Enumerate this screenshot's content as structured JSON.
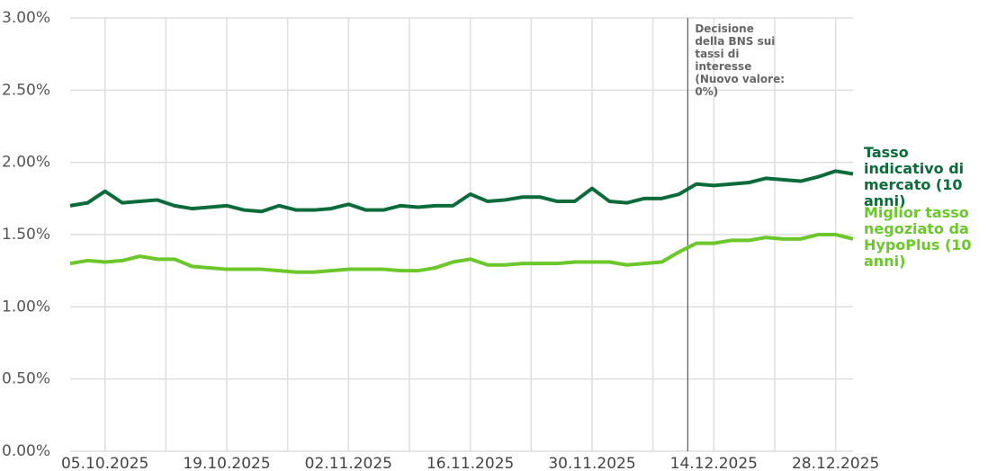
{
  "chart_data": {
    "type": "line",
    "x": [
      "01.10.2025",
      "03.10.2025",
      "05.10.2025",
      "07.10.2025",
      "09.10.2025",
      "11.10.2025",
      "13.10.2025",
      "15.10.2025",
      "17.10.2025",
      "19.10.2025",
      "21.10.2025",
      "23.10.2025",
      "25.10.2025",
      "27.10.2025",
      "29.10.2025",
      "31.10.2025",
      "02.11.2025",
      "04.11.2025",
      "06.11.2025",
      "08.11.2025",
      "10.11.2025",
      "12.11.2025",
      "14.11.2025",
      "16.11.2025",
      "18.11.2025",
      "20.11.2025",
      "22.11.2025",
      "24.11.2025",
      "26.11.2025",
      "28.11.2025",
      "30.11.2025",
      "02.12.2025",
      "04.12.2025",
      "06.12.2025",
      "08.12.2025",
      "10.12.2025",
      "12.12.2025",
      "14.12.2025",
      "16.12.2025",
      "18.12.2025",
      "20.12.2025",
      "22.12.2025",
      "24.12.2025",
      "26.12.2025",
      "28.12.2025",
      "30.12.2025"
    ],
    "series": [
      {
        "name": "Tasso indicativo di mercato (10 anni)",
        "color": "#0b6b3a",
        "values": [
          1.7,
          1.72,
          1.8,
          1.72,
          1.73,
          1.74,
          1.7,
          1.68,
          1.69,
          1.7,
          1.67,
          1.66,
          1.7,
          1.67,
          1.67,
          1.68,
          1.71,
          1.67,
          1.67,
          1.7,
          1.69,
          1.7,
          1.7,
          1.78,
          1.73,
          1.74,
          1.76,
          1.76,
          1.73,
          1.73,
          1.82,
          1.73,
          1.72,
          1.75,
          1.75,
          1.78,
          1.85,
          1.84,
          1.85,
          1.86,
          1.89,
          1.88,
          1.87,
          1.9,
          1.94,
          1.92
        ]
      },
      {
        "name": "Miglior tasso negoziato da HypoPlus (10 anni)",
        "color": "#6cc72b",
        "values": [
          1.3,
          1.32,
          1.31,
          1.32,
          1.35,
          1.33,
          1.33,
          1.28,
          1.27,
          1.26,
          1.26,
          1.26,
          1.25,
          1.24,
          1.24,
          1.25,
          1.26,
          1.26,
          1.26,
          1.25,
          1.25,
          1.27,
          1.31,
          1.33,
          1.29,
          1.29,
          1.3,
          1.3,
          1.3,
          1.31,
          1.31,
          1.31,
          1.29,
          1.3,
          1.31,
          1.38,
          1.44,
          1.44,
          1.46,
          1.46,
          1.48,
          1.47,
          1.47,
          1.5,
          1.5,
          1.47
        ]
      }
    ],
    "xlim": [
      "01.10.2025",
      "30.12.2025"
    ],
    "xticks": [
      "05.10.2025",
      "19.10.2025",
      "02.11.2025",
      "16.11.2025",
      "30.11.2025",
      "14.12.2025",
      "28.12.2025"
    ],
    "ylim": [
      0,
      3
    ],
    "yticks": [
      {
        "value": 0,
        "label": "0.00%"
      },
      {
        "value": 0.5,
        "label": "0.50%"
      },
      {
        "value": 1,
        "label": "1.00%"
      },
      {
        "value": 1.5,
        "label": "1.50%"
      },
      {
        "value": 2,
        "label": "2.00%"
      },
      {
        "value": 2.5,
        "label": "2.50%"
      },
      {
        "value": 3,
        "label": "3.00%"
      }
    ],
    "grid": true,
    "annotation": {
      "x": "11.12.2025",
      "text": "Decisione della BNS sui tassi di interesse (Nuovo valore: 0%)"
    }
  }
}
